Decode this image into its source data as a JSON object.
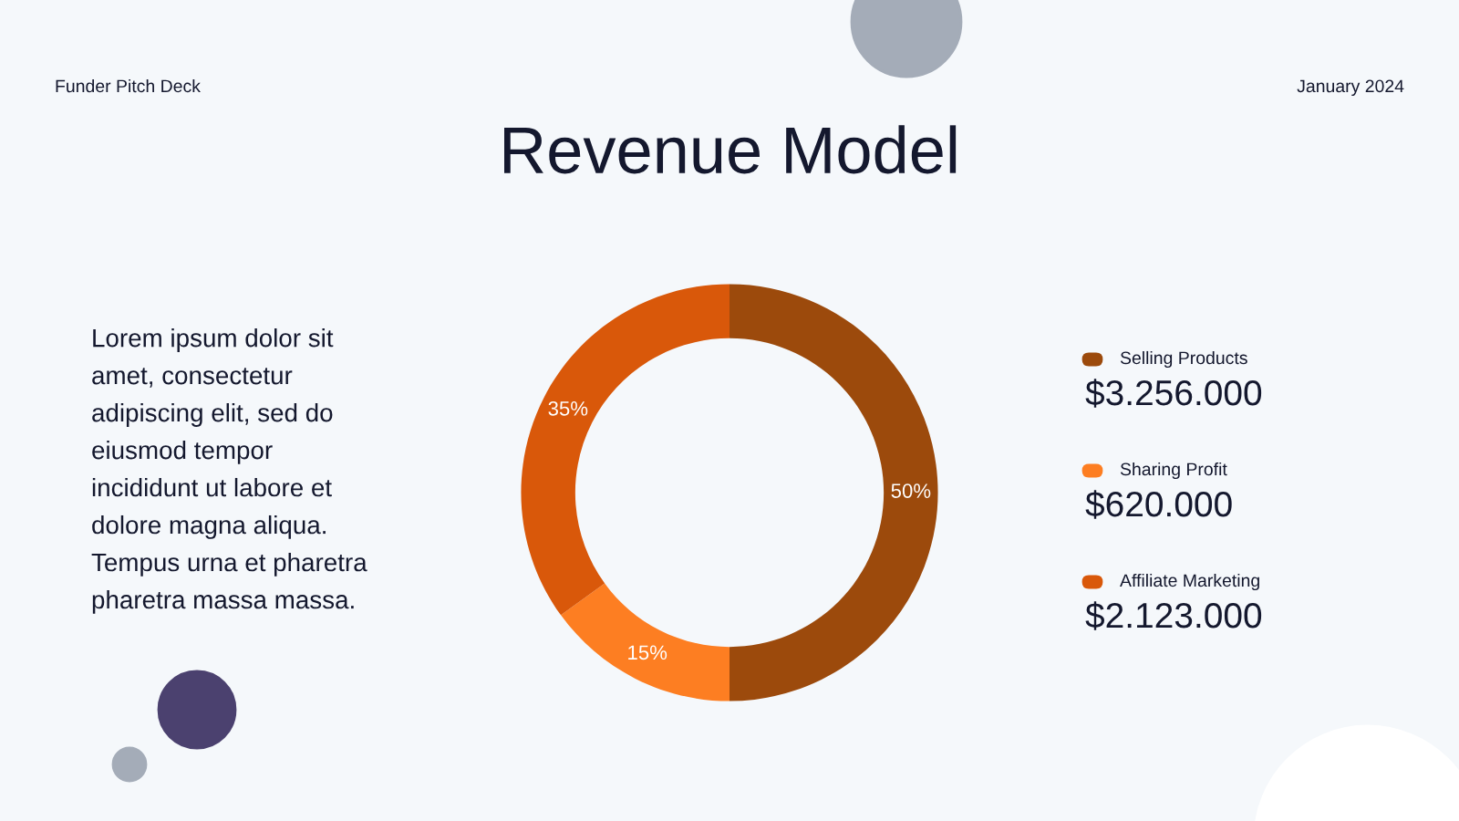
{
  "chart_data": {
    "type": "donut",
    "title": "Revenue Model",
    "categories": [
      "Selling Products",
      "Sharing Profit",
      "Affiliate Marketing"
    ],
    "values": [
      50,
      15,
      35
    ],
    "colors": [
      "#9c4a0c",
      "#fd7e22",
      "#d9580a"
    ],
    "value_labels": [
      "50%",
      "15%",
      "35%"
    ],
    "legend": "right",
    "annotations": [
      "Funder Pitch Deck",
      "January 2024",
      "Lorem ipsum dolor sit\namet, consectetur\nadipiscing elit, sed do\neiusmod tempor\nincididunt ut labore et\ndolore magna aliqua.\nTempus urna et pharetra\npharetra massa massa.",
      "$3.256.000",
      "$620.000",
      "$2.123.000"
    ]
  }
}
